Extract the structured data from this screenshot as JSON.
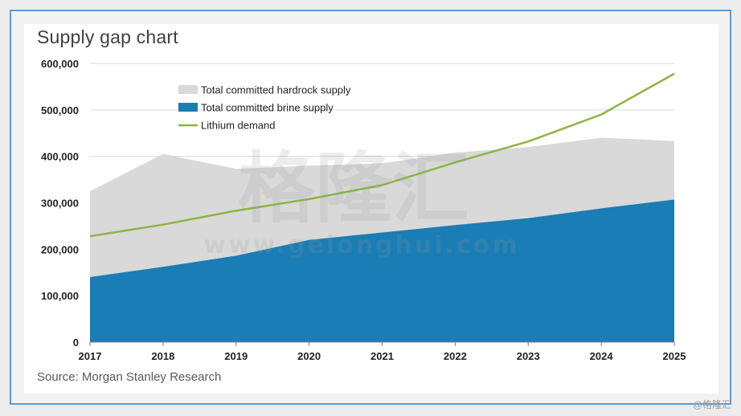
{
  "chart_data": {
    "type": "area",
    "title": "Supply gap chart",
    "xlabel": "",
    "ylabel": "",
    "x": [
      "2017",
      "2018",
      "2019",
      "2020",
      "2021",
      "2022",
      "2023",
      "2024",
      "2025"
    ],
    "ylim": [
      0,
      600000
    ],
    "yticks": [
      0,
      100000,
      200000,
      300000,
      400000,
      500000,
      600000
    ],
    "ytick_labels": [
      "0",
      "100,000",
      "200,000",
      "300,000",
      "400,000",
      "500,000",
      "600,000"
    ],
    "grid": true,
    "legend_placement": "top-left",
    "series": [
      {
        "name": "Total committed hardrock supply",
        "kind": "area",
        "color": "#d9d9d9",
        "values": [
          325000,
          405000,
          373000,
          380000,
          385000,
          408000,
          420000,
          440000,
          433000
        ]
      },
      {
        "name": "Total committed brine supply",
        "kind": "area",
        "color": "#1a7db5",
        "values": [
          140000,
          162000,
          186000,
          220000,
          236000,
          252000,
          267000,
          288000,
          307000
        ]
      },
      {
        "name": "Lithium demand",
        "kind": "line",
        "color": "#8db443",
        "values": [
          228000,
          253000,
          283000,
          308000,
          338000,
          387000,
          432000,
          490000,
          578000
        ]
      }
    ]
  },
  "source": "Source: Morgan Stanley Research",
  "watermark": {
    "main": "格隆汇",
    "url": "www.gelonghui.com",
    "corner": "@格隆汇"
  }
}
